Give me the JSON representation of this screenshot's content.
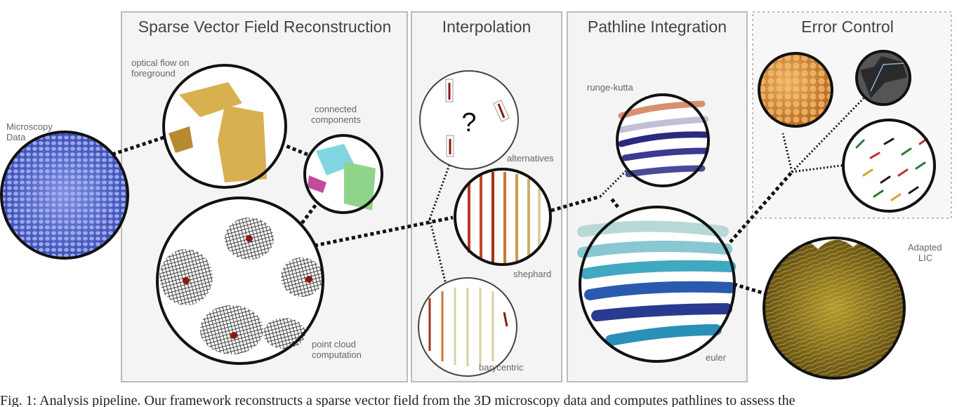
{
  "stages": [
    {
      "id": "sparse",
      "title": "Sparse Vector Field Reconstruction"
    },
    {
      "id": "interp",
      "title": "Interpolation"
    },
    {
      "id": "pathline",
      "title": "Pathline Integration"
    },
    {
      "id": "error",
      "title": "Error Control"
    }
  ],
  "labels": {
    "microscopy": [
      "Microscopy",
      "Data"
    ],
    "optical_flow": [
      "optical flow on",
      "foreground"
    ],
    "connected": [
      "connected",
      "components"
    ],
    "point_cloud": [
      "point cloud",
      "computation"
    ],
    "alternatives": "alternatives",
    "question": "?",
    "shephard": "shephard",
    "barycentric": "barycentric",
    "runge_kutta": "runge-kutta",
    "euler": "euler",
    "adapted_lic": [
      "Adapted",
      "LIC"
    ]
  },
  "caption": "Fig. 1: Analysis pipeline. Our framework reconstructs a sparse vector field from the 3D microscopy data and computes pathlines to assess the"
}
